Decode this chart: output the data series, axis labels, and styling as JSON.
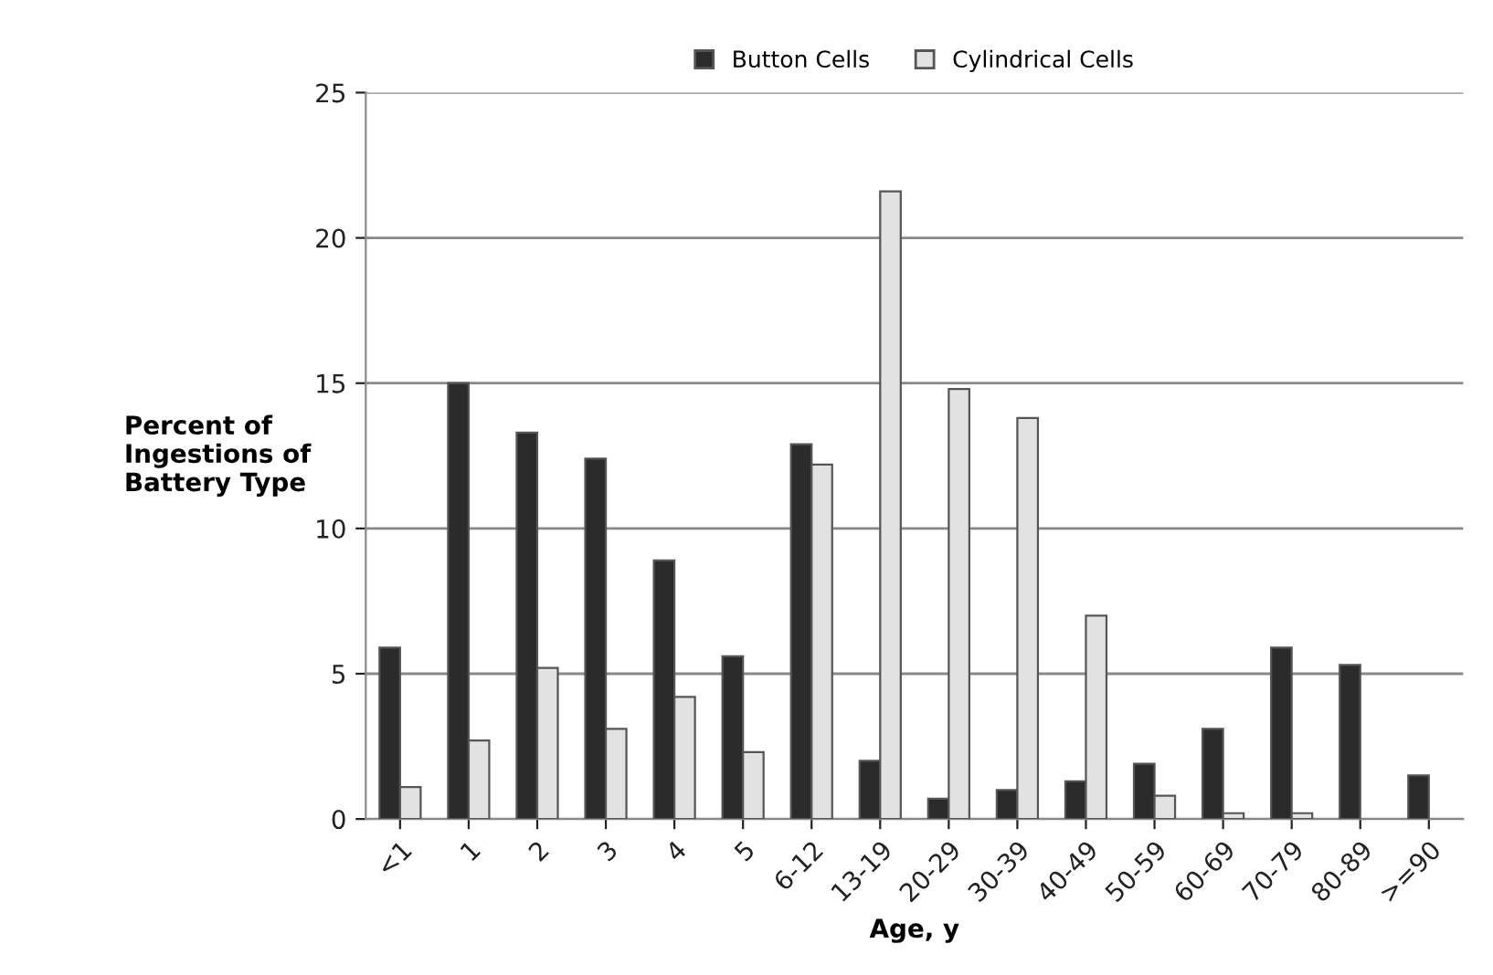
{
  "chart_data": {
    "type": "bar",
    "xlabel": "Age, y",
    "ylabel": "Percent of\nIngestions of\nBattery Type",
    "categories": [
      "<1",
      "1",
      "2",
      "3",
      "4",
      "5",
      "6-12",
      "13-19",
      "20-29",
      "30-39",
      "40-49",
      "50-59",
      "60-69",
      "70-79",
      "80-89",
      ">=90"
    ],
    "series": [
      {
        "name": "Button Cells",
        "color": "#2b2b2b",
        "values": [
          5.9,
          15.0,
          13.3,
          12.4,
          8.9,
          5.6,
          12.9,
          2.0,
          0.7,
          1.0,
          1.3,
          1.9,
          3.1,
          5.9,
          5.3,
          1.5
        ]
      },
      {
        "name": "Cylindrical Cells",
        "color": "#e2e2e2",
        "values": [
          1.1,
          2.7,
          5.2,
          3.1,
          4.2,
          2.3,
          12.2,
          21.6,
          14.8,
          13.8,
          7.0,
          0.8,
          0.2,
          0.2,
          null,
          null
        ]
      }
    ],
    "ylim": [
      0,
      25
    ],
    "yticks": [
      0,
      5,
      10,
      15,
      20,
      25
    ],
    "grid": "y",
    "legend": "top"
  }
}
